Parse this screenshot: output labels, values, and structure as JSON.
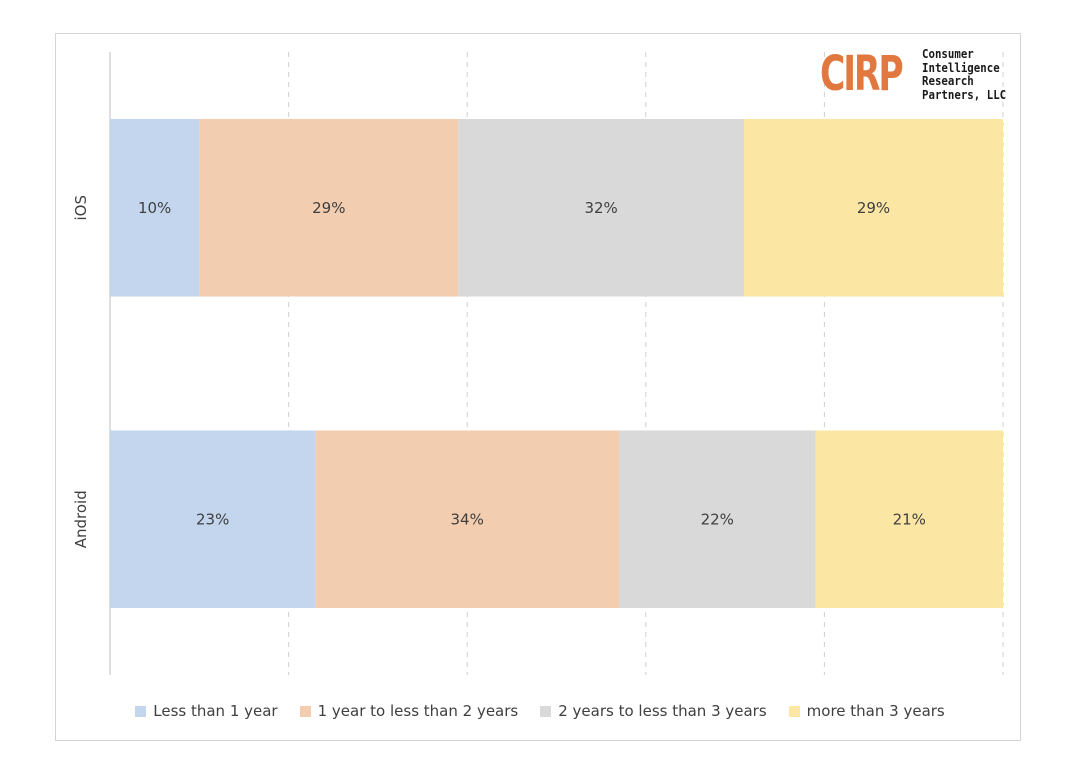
{
  "chart_data": {
    "type": "bar",
    "orientation": "horizontal",
    "stacked": true,
    "percent_stacked": true,
    "categories": [
      "iOS",
      "Android"
    ],
    "series": [
      {
        "name": "Less than 1 year",
        "values": [
          10,
          23
        ],
        "color": "#c3d6ee"
      },
      {
        "name": "1 year to less than 2 years",
        "values": [
          29,
          34
        ],
        "color": "#f2cdb0"
      },
      {
        "name": "2 years to less than 3 years",
        "values": [
          32,
          22
        ],
        "color": "#d9d9d9"
      },
      {
        "name": "more than 3 years",
        "values": [
          29,
          21
        ],
        "color": "#fbe6a3"
      }
    ],
    "data_labels": [
      [
        "10%",
        "29%",
        "32%",
        "29%"
      ],
      [
        "23%",
        "34%",
        "22%",
        "21%"
      ]
    ],
    "xlim": [
      0,
      100
    ],
    "title": "",
    "xlabel": "",
    "ylabel": "",
    "grid": "vertical dashed",
    "legend_position": "bottom"
  },
  "logo": {
    "mark": "CIRP",
    "mark_color": "#e07840",
    "lines": [
      "Consumer",
      "Intelligence",
      "Research",
      "Partners, LLC"
    ]
  }
}
